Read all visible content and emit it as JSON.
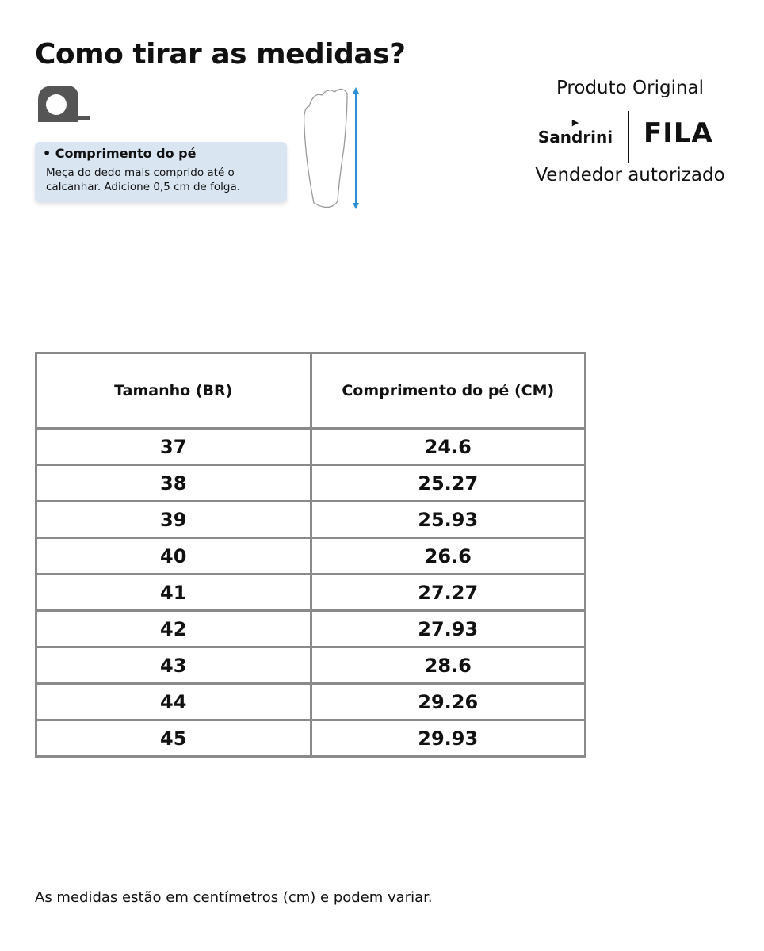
{
  "title": "Como tirar as medidas?",
  "card": {
    "heading": "• Comprimento do pé",
    "text": "Meça do dedo mais comprido até o calcanhar. Adicione 0,5 cm de folga."
  },
  "brand": {
    "top": "Produto Original",
    "sandrini": "Sandrini",
    "fila": "FILA",
    "bottom": "Vendedor autorizado"
  },
  "table": {
    "headers": [
      "Tamanho (BR)",
      "Comprimento do pé (CM)"
    ],
    "rows": [
      [
        "37",
        "24.6"
      ],
      [
        "38",
        "25.27"
      ],
      [
        "39",
        "25.93"
      ],
      [
        "40",
        "26.6"
      ],
      [
        "41",
        "27.27"
      ],
      [
        "42",
        "27.93"
      ],
      [
        "43",
        "28.6"
      ],
      [
        "44",
        "29.26"
      ],
      [
        "45",
        "29.93"
      ]
    ]
  },
  "footer": "As medidas estão em centímetros (cm) e podem variar.",
  "colors": {
    "arrow": "#2a8fd6",
    "card": "#d9e6f2",
    "border": "#8a8a8a"
  }
}
